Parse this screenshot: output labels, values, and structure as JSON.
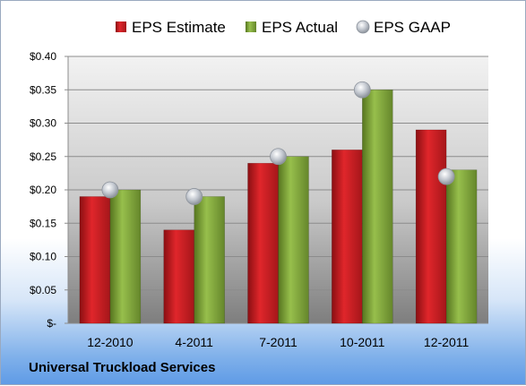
{
  "footer_title": "Universal Truckload Services",
  "chart_data": {
    "type": "bar",
    "categories": [
      "12-2010",
      "4-2011",
      "7-2011",
      "10-2011",
      "12-2011"
    ],
    "series": [
      {
        "name": "EPS Estimate",
        "kind": "bar",
        "color": "#cc1f24",
        "values": [
          0.19,
          0.14,
          0.24,
          0.26,
          0.29
        ]
      },
      {
        "name": "EPS Actual",
        "kind": "bar",
        "color": "#7ea33a",
        "values": [
          0.2,
          0.19,
          0.25,
          0.35,
          0.23
        ]
      },
      {
        "name": "EPS GAAP",
        "kind": "marker",
        "color": "#b9bfc8",
        "values": [
          0.2,
          0.19,
          0.25,
          0.35,
          0.22
        ]
      }
    ],
    "y_ticks": [
      "$-",
      "$0.05",
      "$0.10",
      "$0.15",
      "$0.20",
      "$0.25",
      "$0.30",
      "$0.35",
      "$0.40"
    ],
    "ylim": [
      0,
      0.4
    ],
    "grid": true,
    "legend_position": "top"
  }
}
